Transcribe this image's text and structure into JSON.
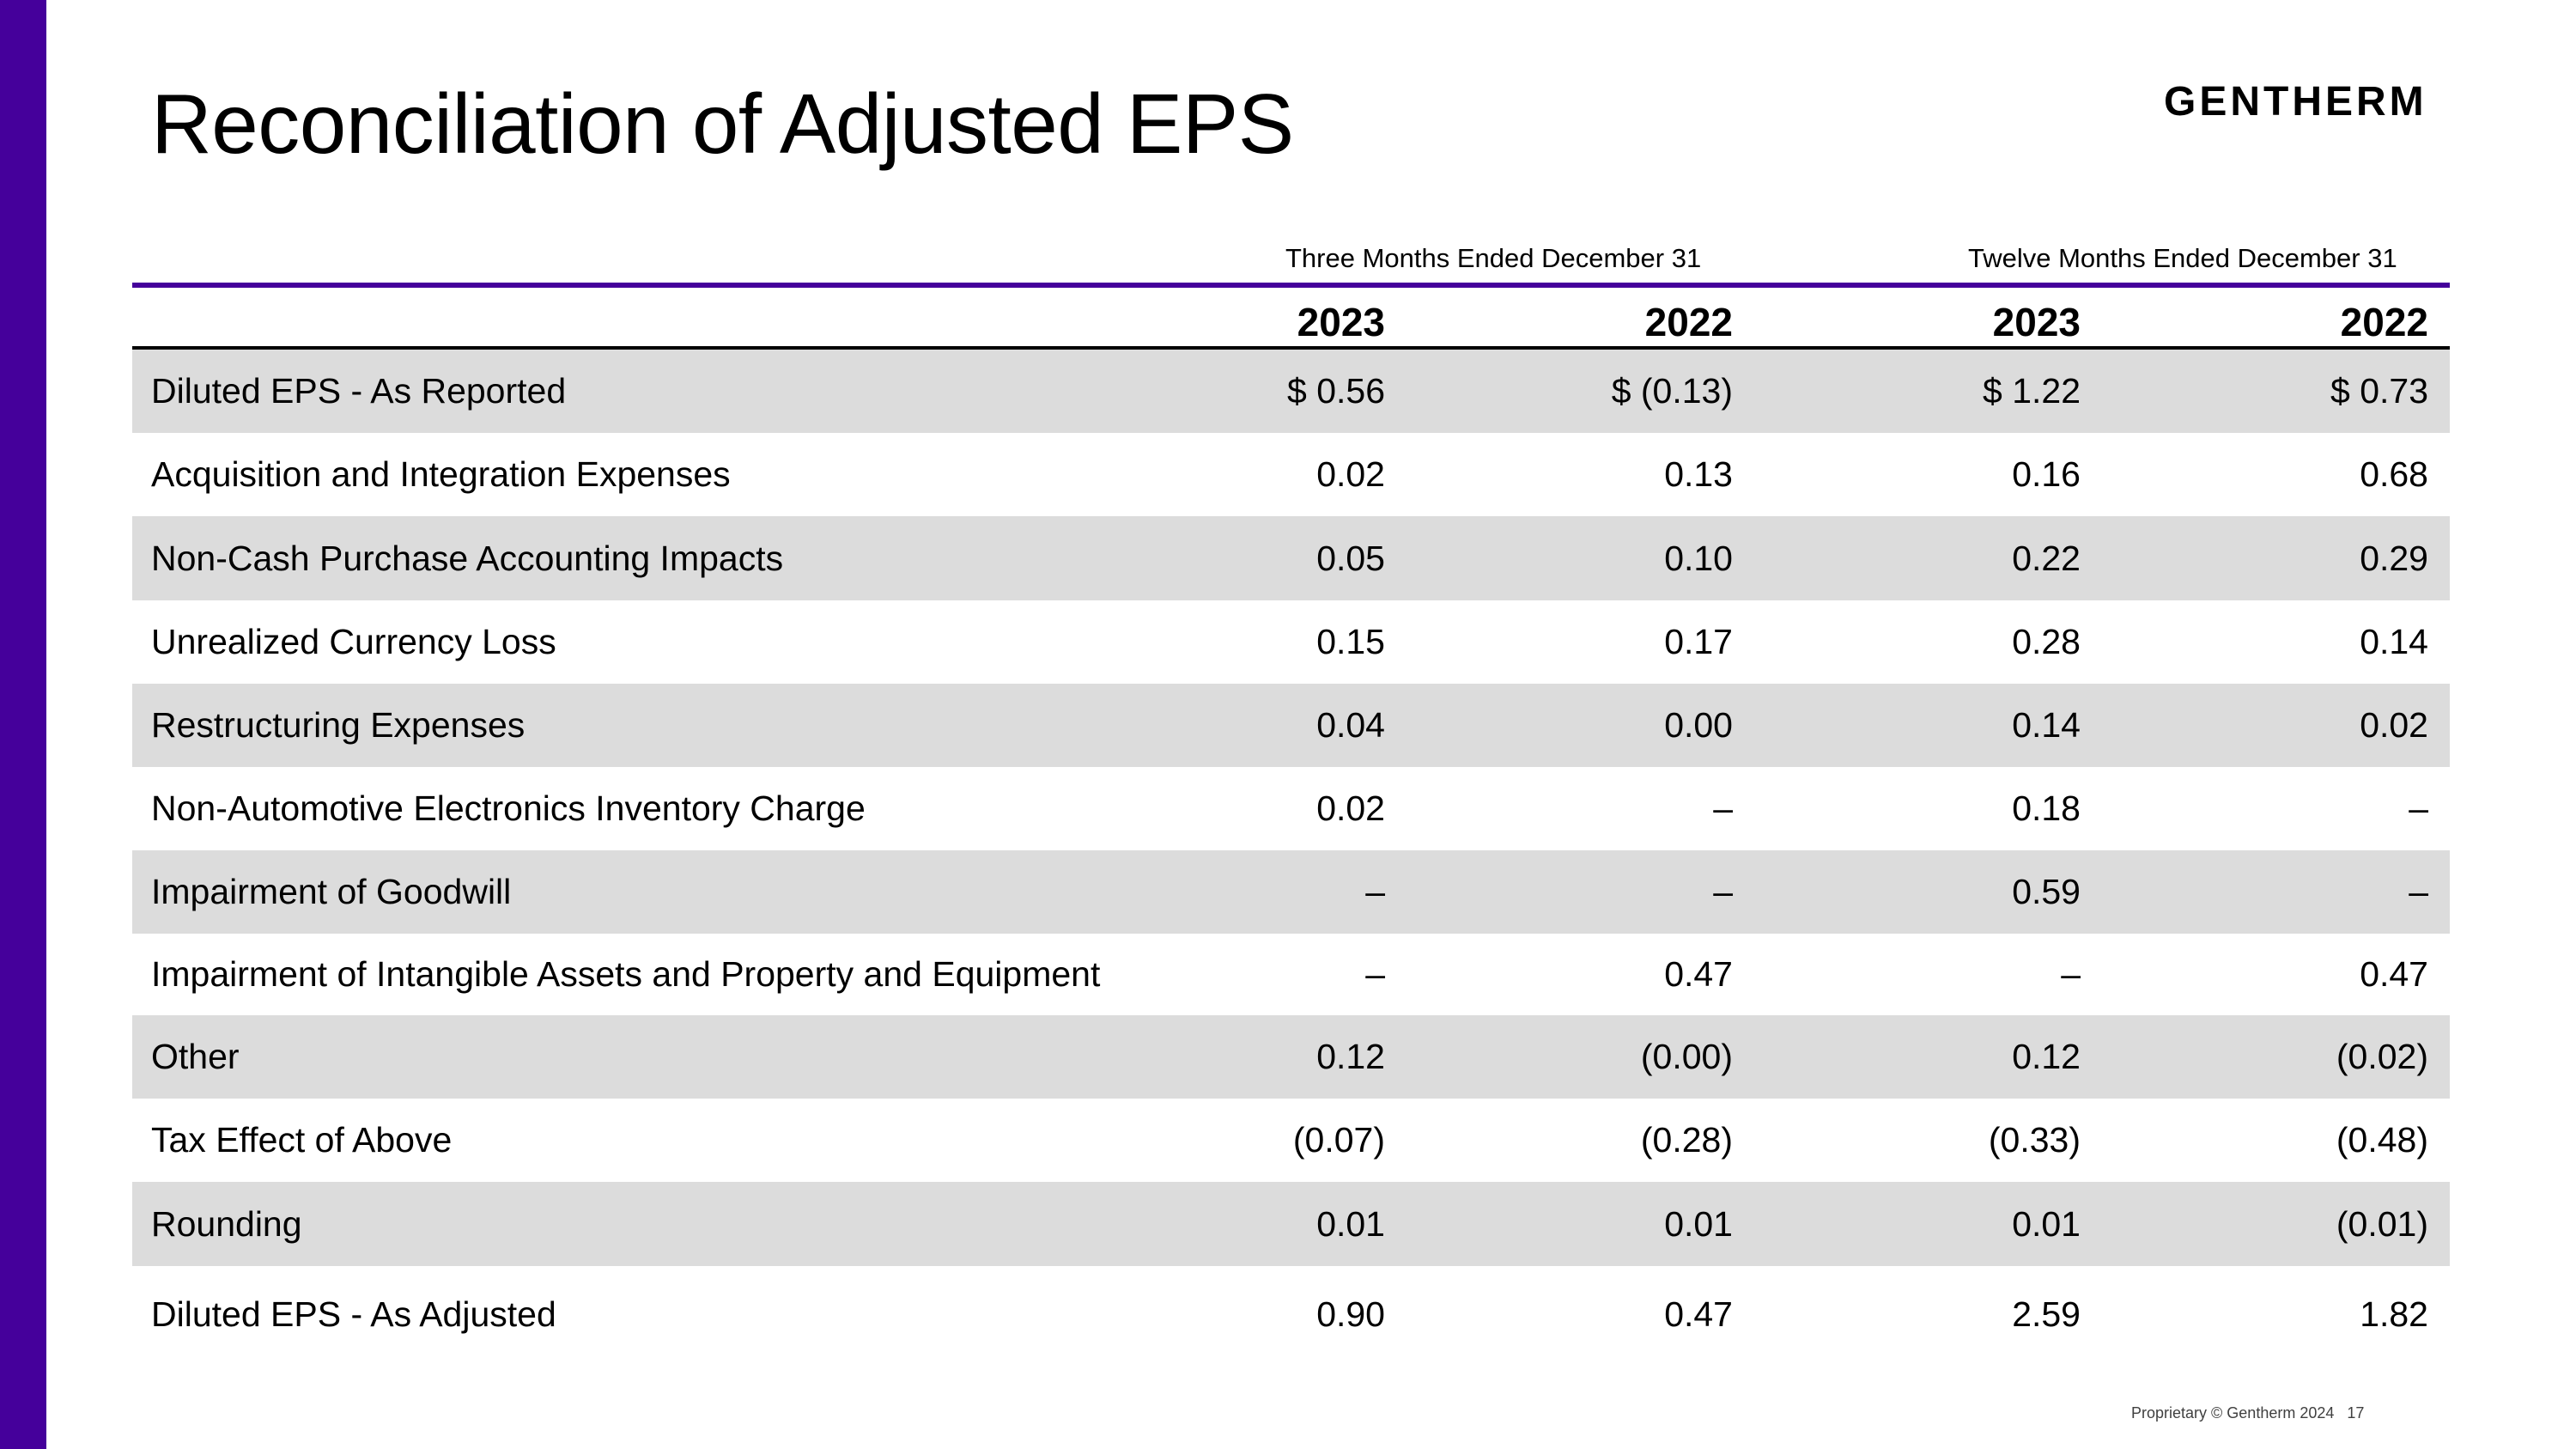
{
  "title": "Reconciliation of Adjusted EPS",
  "logo": "GENTHERM",
  "headers": {
    "three_months": "Three Months Ended December 31",
    "twelve_months": "Twelve Months Ended December 31",
    "years": [
      "2023",
      "2022",
      "2023",
      "2022"
    ]
  },
  "rows": [
    {
      "label": "Diluted EPS - As Reported",
      "values": [
        "$ 0.56",
        "$ (0.13)",
        "$ 1.22",
        "$ 0.73"
      ]
    },
    {
      "label": "Acquisition and Integration Expenses",
      "values": [
        "0.02",
        "0.13",
        "0.16",
        "0.68"
      ]
    },
    {
      "label": "Non-Cash Purchase Accounting Impacts",
      "values": [
        "0.05",
        "0.10",
        "0.22",
        "0.29"
      ]
    },
    {
      "label": "Unrealized Currency Loss",
      "values": [
        "0.15",
        "0.17",
        "0.28",
        "0.14"
      ]
    },
    {
      "label": "Restructuring Expenses",
      "values": [
        "0.04",
        "0.00",
        "0.14",
        "0.02"
      ]
    },
    {
      "label": "Non-Automotive Electronics Inventory Charge",
      "values": [
        "0.02",
        "–",
        "0.18",
        "–"
      ]
    },
    {
      "label": "Impairment of Goodwill",
      "values": [
        "–",
        "–",
        "0.59",
        "–"
      ]
    },
    {
      "label": "Impairment of Intangible Assets and Property and Equipment",
      "values": [
        "–",
        "0.47",
        "–",
        "0.47"
      ]
    },
    {
      "label": "Other",
      "values": [
        "0.12",
        "(0.00)",
        "0.12",
        "(0.02)"
      ]
    },
    {
      "label": "Tax Effect of Above",
      "values": [
        "(0.07)",
        "(0.28)",
        "(0.33)",
        "(0.48)"
      ]
    },
    {
      "label": "Rounding",
      "values": [
        "0.01",
        "0.01",
        "0.01",
        "(0.01)"
      ]
    },
    {
      "label": "Diluted EPS - As Adjusted",
      "values": [
        "0.90",
        "0.47",
        "2.59",
        "1.82"
      ]
    }
  ],
  "footer": {
    "text": "Proprietary © Gentherm 2024",
    "page": "17"
  },
  "colors": {
    "accent": "#45009b",
    "row_shade": "#dcdcdc"
  }
}
